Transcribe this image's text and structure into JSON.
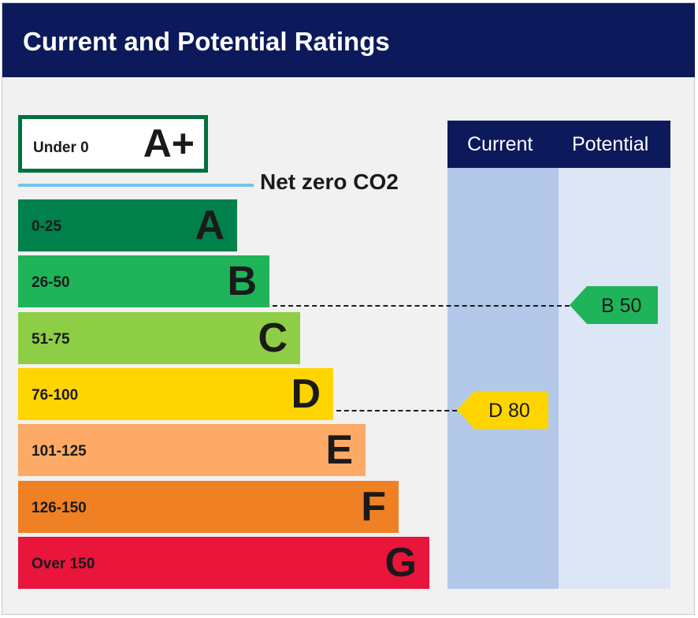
{
  "chart_data": {
    "type": "epc_rating",
    "title": "Current and Potential Ratings",
    "top_band": {
      "range": "Under 0",
      "letter": "A+",
      "color": "#00703c"
    },
    "net_zero_label": "Net zero CO2",
    "bands": [
      {
        "range": "0-25",
        "letter": "A",
        "color": "#00804a"
      },
      {
        "range": "26-50",
        "letter": "B",
        "color": "#1fb45a"
      },
      {
        "range": "51-75",
        "letter": "C",
        "color": "#8dce46"
      },
      {
        "range": "76-100",
        "letter": "D",
        "color": "#ffd500"
      },
      {
        "range": "101-125",
        "letter": "E",
        "color": "#fcaa65"
      },
      {
        "range": "126-150",
        "letter": "F",
        "color": "#ef8023"
      },
      {
        "range": "Over 150",
        "letter": "G",
        "color": "#e9153b"
      }
    ],
    "columns": [
      "Current",
      "Potential"
    ],
    "current": {
      "letter": "D",
      "score": 80,
      "label": "D 80",
      "color": "#ffd500"
    },
    "potential": {
      "letter": "B",
      "score": 50,
      "label": "B 50",
      "color": "#1fb45a"
    }
  }
}
